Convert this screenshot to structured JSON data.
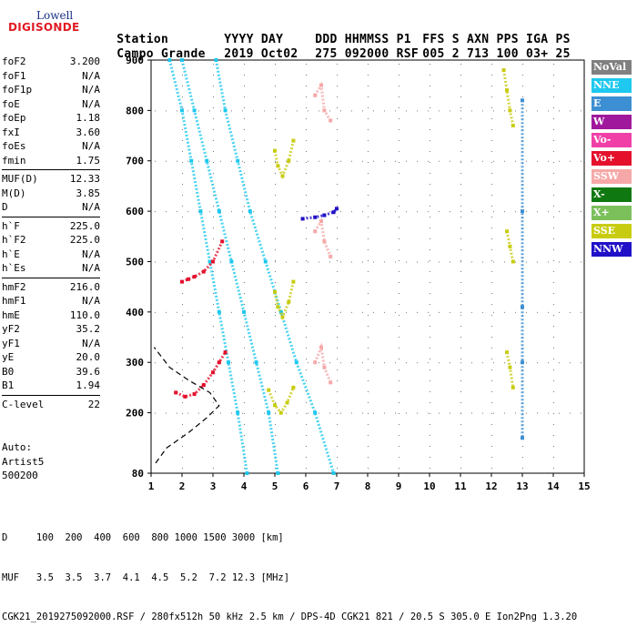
{
  "logo": {
    "line1": "Lowell",
    "line2": "DIGISONDE"
  },
  "header": {
    "labels": [
      "Station",
      "YYYY DAY",
      "DDD HHMMSS P1",
      "FFS S AXN PPS IGA PS"
    ],
    "values": [
      "Campo Grande",
      "2019 Oct02",
      "275 092000 RSF",
      "005 2 713 100 03+ 25"
    ]
  },
  "params": {
    "group1": [
      {
        "name": "foF2",
        "value": "3.200"
      },
      {
        "name": "foF1",
        "value": "N/A"
      },
      {
        "name": "foF1p",
        "value": "N/A"
      },
      {
        "name": "foE",
        "value": "N/A"
      },
      {
        "name": "foEp",
        "value": "1.18"
      },
      {
        "name": "fxI",
        "value": "3.60"
      },
      {
        "name": "foEs",
        "value": "N/A"
      },
      {
        "name": "fmin",
        "value": "1.75"
      }
    ],
    "group2": [
      {
        "name": "MUF(D)",
        "value": "12.33"
      },
      {
        "name": "M(D)",
        "value": "3.85"
      },
      {
        "name": "D",
        "value": "N/A"
      }
    ],
    "group3": [
      {
        "name": "h`F",
        "value": "225.0"
      },
      {
        "name": "h`F2",
        "value": "225.0"
      },
      {
        "name": "h`E",
        "value": "N/A"
      },
      {
        "name": "h`Es",
        "value": "N/A"
      }
    ],
    "group4": [
      {
        "name": "hmF2",
        "value": "216.0"
      },
      {
        "name": "hmF1",
        "value": "N/A"
      },
      {
        "name": "hmE",
        "value": "110.0"
      },
      {
        "name": "yF2",
        "value": "35.2"
      },
      {
        "name": "yF1",
        "value": "N/A"
      },
      {
        "name": "yE",
        "value": "20.0"
      },
      {
        "name": "B0",
        "value": "39.6"
      },
      {
        "name": "B1",
        "value": "1.94"
      }
    ],
    "group5": [
      {
        "name": "C-level",
        "value": "22"
      }
    ]
  },
  "auto": {
    "line1": "Auto:",
    "line2": "Artist5",
    "line3": "500200"
  },
  "chart_data": {
    "type": "scatter",
    "title": "",
    "xlabel": "",
    "ylabel": "",
    "xlim": [
      1,
      15
    ],
    "ylim": [
      80,
      900
    ],
    "x_ticks": [
      "1",
      "2",
      "3",
      "4",
      "5",
      "6",
      "7",
      "8",
      "9",
      "10",
      "11",
      "12",
      "13",
      "14",
      "15"
    ],
    "y_ticks": [
      "80",
      "200",
      "300",
      "400",
      "500",
      "600",
      "700",
      "800",
      "900"
    ],
    "y_tick_values": [
      80,
      200,
      300,
      400,
      500,
      600,
      700,
      800,
      900
    ],
    "legend_position": "right",
    "legend": [
      {
        "label": "NoVal",
        "color": "#808080"
      },
      {
        "label": "NNE",
        "color": "#1ec8ee"
      },
      {
        "label": "E",
        "color": "#3c8fd2"
      },
      {
        "label": "W",
        "color": "#a0189c"
      },
      {
        "label": "Vo-",
        "color": "#f040a8"
      },
      {
        "label": "Vo+",
        "color": "#e4102c"
      },
      {
        "label": "SSW",
        "color": "#f6a8a8"
      },
      {
        "label": "X-",
        "color": "#107810"
      },
      {
        "label": "X+",
        "color": "#7cc05c"
      },
      {
        "label": "SSE",
        "color": "#c8cc10"
      },
      {
        "label": "NNW",
        "color": "#2010c8"
      }
    ],
    "series": [
      {
        "name": "NNE",
        "color": "#1ec8ee",
        "points": [
          [
            2.0,
            900
          ],
          [
            2.4,
            800
          ],
          [
            2.8,
            700
          ],
          [
            3.2,
            600
          ],
          [
            3.6,
            500
          ],
          [
            4.0,
            400
          ],
          [
            4.4,
            300
          ],
          [
            4.8,
            200
          ],
          [
            5.1,
            80
          ]
        ]
      },
      {
        "name": "NNE",
        "color": "#1ec8ee",
        "points": [
          [
            3.1,
            900
          ],
          [
            3.4,
            800
          ],
          [
            3.8,
            700
          ],
          [
            4.2,
            600
          ],
          [
            4.7,
            500
          ],
          [
            5.2,
            400
          ],
          [
            5.7,
            300
          ],
          [
            6.3,
            200
          ],
          [
            6.9,
            80
          ]
        ]
      },
      {
        "name": "NNE",
        "color": "#1ec8ee",
        "points": [
          [
            1.6,
            900
          ],
          [
            2.0,
            800
          ],
          [
            2.3,
            700
          ],
          [
            2.6,
            600
          ],
          [
            2.9,
            500
          ],
          [
            3.2,
            400
          ],
          [
            3.5,
            300
          ],
          [
            3.8,
            200
          ],
          [
            4.1,
            80
          ]
        ]
      },
      {
        "name": "SSE",
        "color": "#c8cc10",
        "points": [
          [
            5.0,
            720
          ],
          [
            5.1,
            690
          ],
          [
            5.25,
            670
          ],
          [
            5.45,
            700
          ],
          [
            5.6,
            740
          ]
        ]
      },
      {
        "name": "SSE",
        "color": "#c8cc10",
        "points": [
          [
            5.0,
            440
          ],
          [
            5.1,
            410
          ],
          [
            5.25,
            390
          ],
          [
            5.45,
            420
          ],
          [
            5.6,
            460
          ]
        ]
      },
      {
        "name": "SSE",
        "color": "#c8cc10",
        "points": [
          [
            4.8,
            245
          ],
          [
            5.0,
            215
          ],
          [
            5.2,
            200
          ],
          [
            5.4,
            220
          ],
          [
            5.6,
            250
          ]
        ]
      },
      {
        "name": "SSW",
        "color": "#f6a8a8",
        "points": [
          [
            6.3,
            830
          ],
          [
            6.5,
            850
          ],
          [
            6.6,
            800
          ],
          [
            6.8,
            780
          ]
        ]
      },
      {
        "name": "SSW",
        "color": "#f6a8a8",
        "points": [
          [
            6.3,
            560
          ],
          [
            6.5,
            580
          ],
          [
            6.6,
            540
          ],
          [
            6.8,
            510
          ]
        ]
      },
      {
        "name": "SSW",
        "color": "#f6a8a8",
        "points": [
          [
            6.3,
            300
          ],
          [
            6.5,
            330
          ],
          [
            6.6,
            290
          ],
          [
            6.8,
            260
          ]
        ]
      },
      {
        "name": "NNW",
        "color": "#2010c8",
        "points": [
          [
            5.9,
            585
          ],
          [
            6.3,
            588
          ],
          [
            6.6,
            592
          ],
          [
            6.9,
            598
          ],
          [
            7.0,
            605
          ]
        ]
      },
      {
        "name": "Vo+",
        "color": "#e4102c",
        "points": [
          [
            1.8,
            240
          ],
          [
            2.1,
            232
          ],
          [
            2.4,
            237
          ],
          [
            2.7,
            255
          ],
          [
            3.0,
            280
          ],
          [
            3.2,
            300
          ],
          [
            3.4,
            320
          ]
        ]
      },
      {
        "name": "Vo+",
        "color": "#e4102c",
        "points": [
          [
            2.0,
            460
          ],
          [
            2.2,
            465
          ],
          [
            2.4,
            470
          ],
          [
            2.7,
            480
          ],
          [
            3.0,
            500
          ],
          [
            3.3,
            540
          ]
        ]
      },
      {
        "name": "SSE",
        "color": "#c8cc10",
        "points": [
          [
            12.4,
            880
          ],
          [
            12.5,
            840
          ],
          [
            12.6,
            800
          ],
          [
            12.7,
            770
          ]
        ]
      },
      {
        "name": "SSE",
        "color": "#c8cc10",
        "points": [
          [
            12.5,
            560
          ],
          [
            12.6,
            530
          ],
          [
            12.7,
            500
          ]
        ]
      },
      {
        "name": "SSE",
        "color": "#c8cc10",
        "points": [
          [
            12.5,
            320
          ],
          [
            12.6,
            290
          ],
          [
            12.7,
            250
          ]
        ]
      },
      {
        "name": "E",
        "color": "#3c8fd2",
        "points": [
          [
            13.0,
            820
          ],
          [
            13.0,
            600
          ],
          [
            13.0,
            410
          ],
          [
            13.0,
            300
          ],
          [
            13.0,
            150
          ]
        ]
      }
    ],
    "profile": {
      "color": "#000000",
      "points": [
        [
          1.15,
          100
        ],
        [
          1.5,
          130
        ],
        [
          2.2,
          160
        ],
        [
          2.8,
          190
        ],
        [
          3.2,
          214
        ],
        [
          2.9,
          240
        ],
        [
          2.2,
          265
        ],
        [
          1.6,
          290
        ],
        [
          1.1,
          330
        ]
      ]
    }
  },
  "footer": {
    "line1": "D     100  200  400  600  800 1000 1500 3000 [km]",
    "line2": "MUF   3.5  3.5  3.7  4.1  4.5  5.2  7.2 12.3 [MHz]",
    "line3": "CGK21_2019275092000.RSF / 280fx512h 50 kHz 2.5 km / DPS-4D CGK21 821 / 20.5 S 305.0 E Ion2Png 1.3.20"
  }
}
